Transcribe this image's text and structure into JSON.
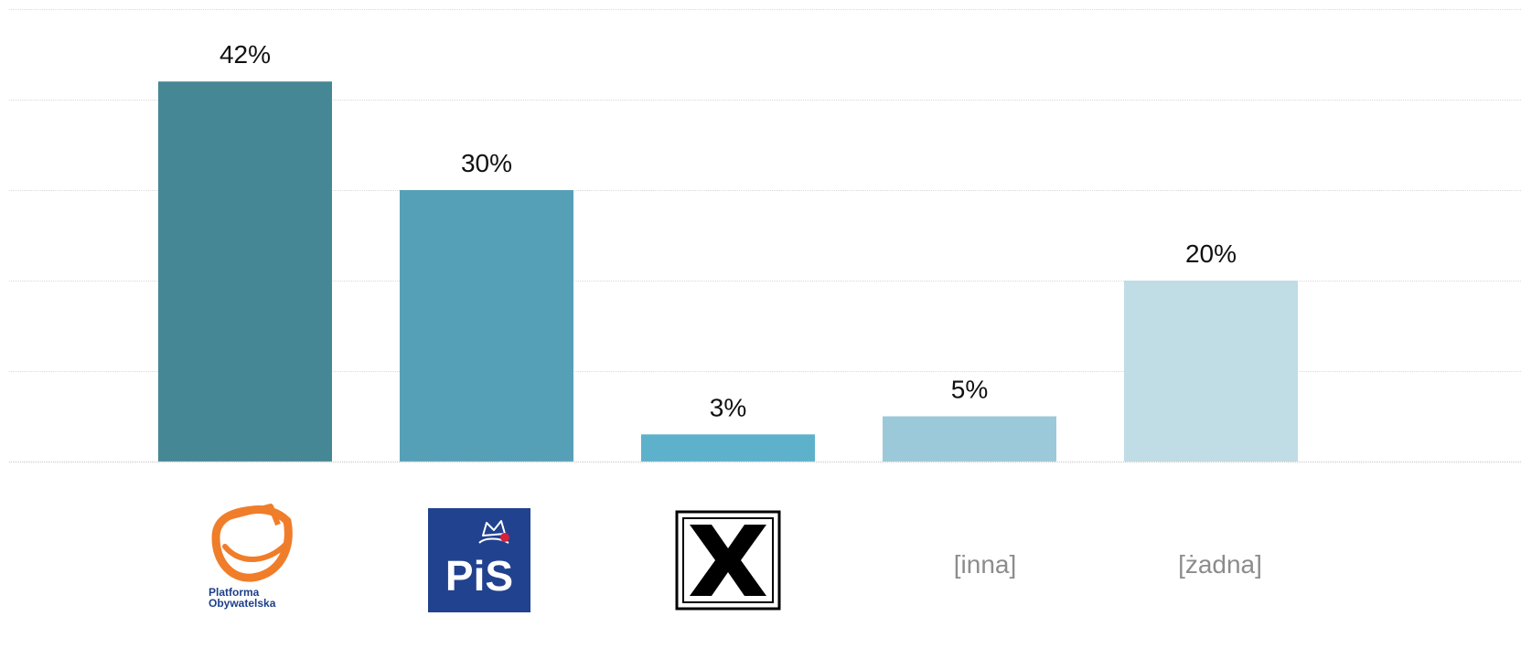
{
  "chart_data": {
    "type": "bar",
    "title": "",
    "xlabel": "",
    "ylabel": "",
    "ylim": [
      0,
      50
    ],
    "grid": true,
    "categories": [
      {
        "key": "po",
        "label": "Platforma Obywatelska",
        "logo_lines": [
          "Platforma",
          "Obywatelska"
        ],
        "display": "logo",
        "icon": "platforma-obywatelska-logo",
        "color": "#468796"
      },
      {
        "key": "pis",
        "label": "PiS",
        "display": "logo",
        "icon": "pis-logo",
        "color": "#56a0b7"
      },
      {
        "key": "x",
        "label": "",
        "display": "logo",
        "icon": "x-logo",
        "color": "#5db1cb"
      },
      {
        "key": "inna",
        "label": "[inna]",
        "display": "text",
        "color": "#9cc9d9"
      },
      {
        "key": "zadna",
        "label": "[żadna]",
        "display": "text",
        "color": "#c0dce5"
      }
    ],
    "values": [
      42,
      30,
      3,
      5,
      20
    ],
    "value_labels": [
      "42%",
      "30%",
      "3%",
      "5%",
      "20%"
    ]
  }
}
